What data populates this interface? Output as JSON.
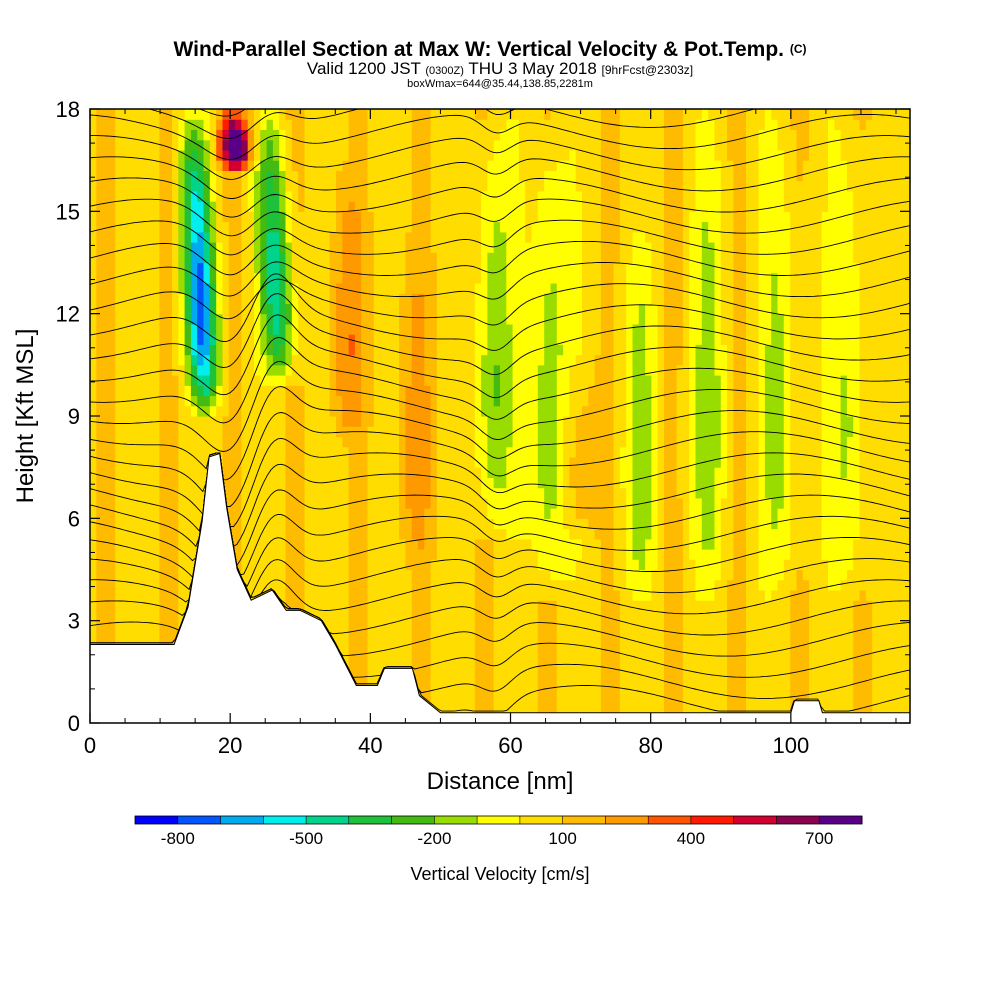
{
  "header": {
    "title_main": "Wind-Parallel Section at Max W: Vertical Velocity & Pot.Temp.",
    "title_mark": "(C)",
    "subtitle_a": "Valid 1200 JST",
    "subtitle_b": "(0300Z)",
    "subtitle_c": "THU 3 May 2018",
    "subtitle_d": "[9hrFcst@2303z]",
    "subtitle_line2": "boxWmax=644@35.44,138.85,2281m"
  },
  "chart_data": {
    "type": "heatmap",
    "xlabel": "Distance [nm]",
    "ylabel": "Height [Kft MSL]",
    "xlim": [
      0,
      117
    ],
    "ylim": [
      0,
      18
    ],
    "x_ticks": [
      0,
      20,
      40,
      60,
      80,
      100
    ],
    "y_ticks": [
      0,
      3,
      6,
      9,
      12,
      15,
      18
    ],
    "grid": false,
    "colorbar": {
      "title": "Vertical Velocity [cm/s]",
      "placement": "bottom",
      "bins": [
        -900,
        -800,
        -700,
        -600,
        -500,
        -400,
        -300,
        -200,
        -100,
        0,
        100,
        200,
        300,
        400,
        500,
        600,
        700,
        800
      ],
      "colors": [
        "#0000ff",
        "#0055ff",
        "#00aaee",
        "#00eeee",
        "#00d48a",
        "#1ec23a",
        "#44bb11",
        "#99dd00",
        "#ffff00",
        "#ffdd00",
        "#ffbb00",
        "#ff9900",
        "#ff5500",
        "#ff1a00",
        "#d10030",
        "#8b0050",
        "#5a0088"
      ],
      "labels": [
        "-800",
        "-500",
        "-200",
        "100",
        "400",
        "700"
      ],
      "label_values": [
        -800,
        -500,
        -200,
        100,
        400,
        700
      ]
    },
    "terrain": [
      [
        0,
        2.3
      ],
      [
        6,
        2.3
      ],
      [
        9,
        2.3
      ],
      [
        12,
        2.3
      ],
      [
        14,
        3.4
      ],
      [
        16,
        5.9
      ],
      [
        17,
        7.8
      ],
      [
        18.5,
        7.9
      ],
      [
        19.5,
        6.3
      ],
      [
        21,
        4.5
      ],
      [
        23,
        3.6
      ],
      [
        26,
        3.9
      ],
      [
        28,
        3.3
      ],
      [
        30,
        3.3
      ],
      [
        33,
        3.0
      ],
      [
        35,
        2.3
      ],
      [
        38,
        1.1
      ],
      [
        41,
        1.1
      ],
      [
        42,
        1.6
      ],
      [
        46,
        1.6
      ],
      [
        47,
        0.8
      ],
      [
        50,
        0.3
      ],
      [
        60,
        0.3
      ],
      [
        100,
        0.3
      ],
      [
        100.5,
        0.65
      ],
      [
        104,
        0.65
      ],
      [
        104.5,
        0.3
      ],
      [
        117,
        0.3
      ]
    ],
    "updrafts": [
      {
        "x": 24.5,
        "min": 0.9,
        "max": 1.0,
        "value": 800
      },
      {
        "x": 36.5,
        "min": 0.45,
        "max": 0.92,
        "value": 200
      },
      {
        "x": 46.5,
        "min": 0.25,
        "max": 0.8,
        "value": 150
      },
      {
        "x": 69.5,
        "min": 0.3,
        "max": 0.6,
        "value": 150
      }
    ],
    "downdrafts": [
      {
        "x": 18.5,
        "min": 0.5,
        "max": 1.0,
        "value": -800
      },
      {
        "x": 29.5,
        "min": 0.55,
        "max": 1.0,
        "value": -550
      },
      {
        "x": 57.5,
        "min": 0.3,
        "max": 1.0,
        "value": -300
      },
      {
        "x": 65.5,
        "min": 0.2,
        "max": 1.0,
        "value": -300
      },
      {
        "x": 78.5,
        "min": 0.2,
        "max": 0.8,
        "value": -200
      },
      {
        "x": 88.5,
        "min": 0.2,
        "max": 1.0,
        "value": -200
      },
      {
        "x": 98.5,
        "min": 0.2,
        "max": 1.0,
        "value": -200
      },
      {
        "x": 108.5,
        "min": 0.2,
        "max": 1.0,
        "value": -200
      }
    ],
    "isentrope_count": 30
  }
}
